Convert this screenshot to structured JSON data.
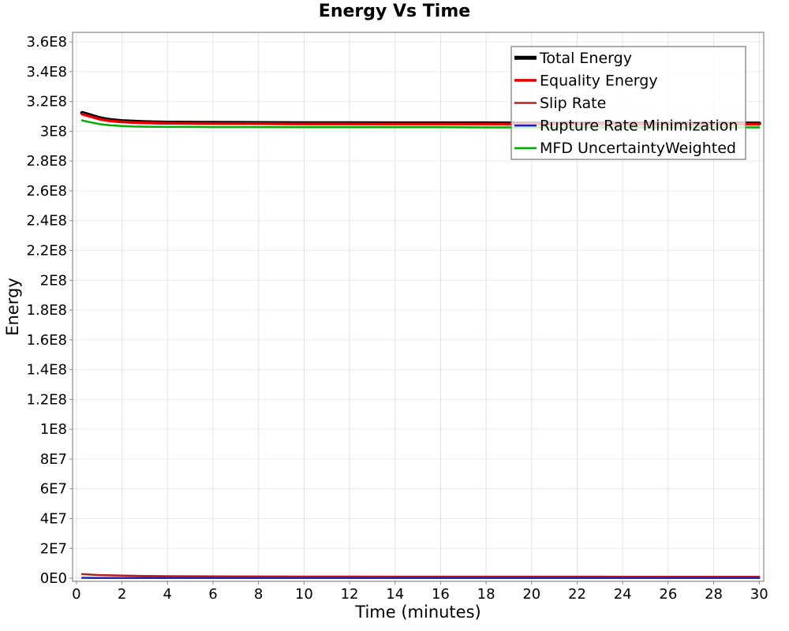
{
  "page": {
    "background": "#ffffff"
  },
  "chart_data": {
    "type": "line",
    "title": "Energy Vs Time",
    "xlabel": "Time (minutes)",
    "ylabel": "Energy",
    "xlim": [
      -0.17,
      30.2
    ],
    "ylim": [
      -2100000,
      366400000
    ],
    "grid": true,
    "grid_color_h": "#ececec",
    "grid_color_v": "#e4e4e4",
    "border_color": "#a0a0a0",
    "tick_color": "#888888",
    "x_ticks": [
      {
        "value": 0,
        "label": "0"
      },
      {
        "value": 2,
        "label": "2"
      },
      {
        "value": 4,
        "label": "4"
      },
      {
        "value": 6,
        "label": "6"
      },
      {
        "value": 8,
        "label": "8"
      },
      {
        "value": 10,
        "label": "10"
      },
      {
        "value": 12,
        "label": "12"
      },
      {
        "value": 14,
        "label": "14"
      },
      {
        "value": 16,
        "label": "16"
      },
      {
        "value": 18,
        "label": "18"
      },
      {
        "value": 20,
        "label": "20"
      },
      {
        "value": 22,
        "label": "22"
      },
      {
        "value": 24,
        "label": "24"
      },
      {
        "value": 26,
        "label": "26"
      },
      {
        "value": 28,
        "label": "28"
      },
      {
        "value": 30,
        "label": "30"
      }
    ],
    "y_ticks": [
      {
        "value": 0,
        "label": "0E0"
      },
      {
        "value": 20000000,
        "label": "2E7"
      },
      {
        "value": 40000000,
        "label": "4E7"
      },
      {
        "value": 60000000,
        "label": "6E7"
      },
      {
        "value": 80000000,
        "label": "8E7"
      },
      {
        "value": 100000000,
        "label": "1E8"
      },
      {
        "value": 120000000,
        "label": "1.2E8"
      },
      {
        "value": 140000000,
        "label": "1.4E8"
      },
      {
        "value": 160000000,
        "label": "1.6E8"
      },
      {
        "value": 180000000,
        "label": "1.8E8"
      },
      {
        "value": 200000000,
        "label": "2E8"
      },
      {
        "value": 220000000,
        "label": "2.2E8"
      },
      {
        "value": 240000000,
        "label": "2.4E8"
      },
      {
        "value": 260000000,
        "label": "2.6E8"
      },
      {
        "value": 280000000,
        "label": "2.8E8"
      },
      {
        "value": 300000000,
        "label": "3E8"
      },
      {
        "value": 320000000,
        "label": "3.2E8"
      },
      {
        "value": 340000000,
        "label": "3.4E8"
      },
      {
        "value": 360000000,
        "label": "3.6E8"
      }
    ],
    "legend": {
      "position": "top-right",
      "background": "rgba(255,255,255,0.78)",
      "border_color": "#808080"
    },
    "x": [
      0.25,
      0.5,
      0.75,
      1,
      1.25,
      1.5,
      2,
      2.5,
      3,
      4,
      5,
      6,
      8,
      10,
      12,
      14,
      16,
      18,
      20,
      22,
      24,
      26,
      28,
      30
    ],
    "series": [
      {
        "name": "Total Energy",
        "color": "#000000",
        "width": 5,
        "y": [
          312300000,
          311200000,
          310000000,
          308900000,
          308100000,
          307500000,
          306800000,
          306400000,
          306100000,
          305800000,
          305700000,
          305600000,
          305500000,
          305400000,
          305400000,
          305300000,
          305300000,
          305300000,
          305200000,
          305200000,
          305200000,
          305200000,
          305200000,
          305200000
        ]
      },
      {
        "name": "Equality Energy",
        "color": "#e60000",
        "width": 3.5,
        "y": [
          311500000,
          310400000,
          309300000,
          308200000,
          307400000,
          306900000,
          306300000,
          305900000,
          305600000,
          305400000,
          305300000,
          305200000,
          305100000,
          305000000,
          305000000,
          304900000,
          304900000,
          304900000,
          304800000,
          304800000,
          304800000,
          304800000,
          304800000,
          304800000
        ]
      },
      {
        "name": "Slip Rate",
        "color": "#b22222",
        "width": 2.5,
        "y": [
          2700000,
          2500000,
          2300000,
          2100000,
          2000000,
          1900000,
          1700000,
          1600000,
          1500000,
          1350000,
          1280000,
          1220000,
          1150000,
          1100000,
          1070000,
          1050000,
          1030000,
          1020000,
          1000000,
          1000000,
          980000,
          970000,
          960000,
          950000
        ]
      },
      {
        "name": "Rupture Rate Minimization",
        "color": "#2222bb",
        "width": 2.5,
        "y": [
          250000,
          220000,
          200000,
          180000,
          170000,
          160000,
          150000,
          140000,
          130000,
          120000,
          120000,
          110000,
          110000,
          100000,
          100000,
          100000,
          100000,
          100000,
          100000,
          100000,
          100000,
          100000,
          100000,
          100000
        ]
      },
      {
        "name": "MFD UncertaintyWeighted",
        "color": "#00b000",
        "width": 2.5,
        "y": [
          307300000,
          306400000,
          305600000,
          304900000,
          304400000,
          304000000,
          303500000,
          303200000,
          303100000,
          302900000,
          302900000,
          302800000,
          302800000,
          302700000,
          302700000,
          302700000,
          302700000,
          302600000,
          302600000,
          302600000,
          302600000,
          302600000,
          302600000,
          302600000
        ]
      }
    ]
  }
}
